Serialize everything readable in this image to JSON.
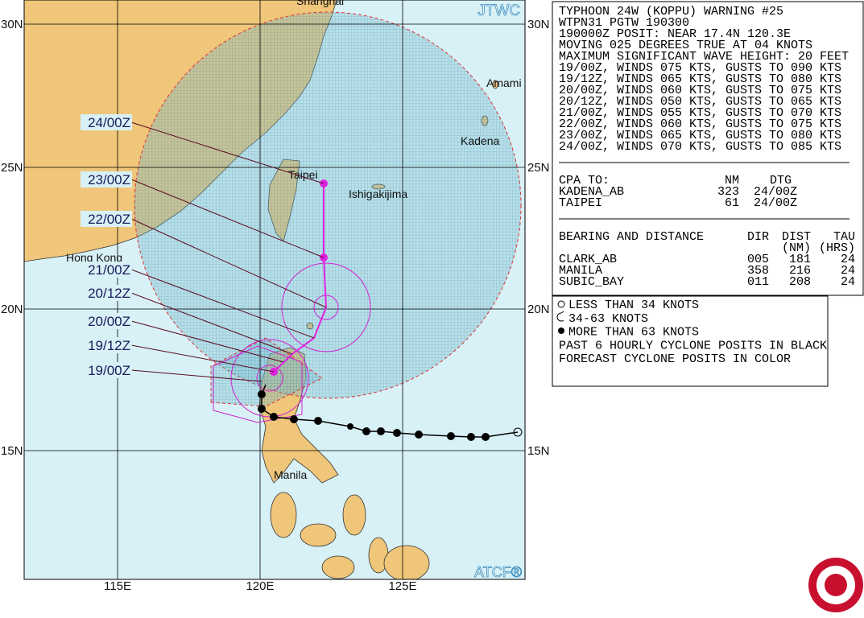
{
  "map": {
    "agency": "JTWC",
    "software": "ATCF®",
    "lat_labels": [
      "30N",
      "25N",
      "20N",
      "15N"
    ],
    "lon_labels": [
      "115E",
      "120E",
      "125E"
    ],
    "places": [
      "Shanghai",
      "Amami",
      "Kadena",
      "Taipei",
      "Ishigakijima",
      "Hong Kong",
      "Manila"
    ],
    "track_labels": [
      "24/00Z",
      "23/00Z",
      "22/00Z",
      "21/00Z",
      "20/12Z",
      "20/00Z",
      "19/12Z",
      "19/00Z"
    ]
  },
  "warning": {
    "header": [
      "TYPHOON 24W (KOPPU) WARNING #25",
      "WTPN31 PGTW 190300",
      "190000Z POSIT: NEAR 17.4N 120.3E",
      "MOVING 025 DEGREES TRUE AT 04 KNOTS",
      "MAXIMUM SIGNIFICANT WAVE HEIGHT: 20 FEET"
    ],
    "forecast": [
      "19/00Z, WINDS 075 KTS, GUSTS TO 090 KTS",
      "19/12Z, WINDS 065 KTS, GUSTS TO 080 KTS",
      "20/00Z, WINDS 060 KTS, GUSTS TO 075 KTS",
      "20/12Z, WINDS 050 KTS, GUSTS TO 065 KTS",
      "21/00Z, WINDS 055 KTS, GUSTS TO 070 KTS",
      "22/00Z, WINDS 060 KTS, GUSTS TO 075 KTS",
      "23/00Z, WINDS 065 KTS, GUSTS TO 080 KTS",
      "24/00Z, WINDS 070 KTS, GUSTS TO 085 KTS"
    ],
    "cpa": {
      "headers": [
        "CPA TO:",
        "NM",
        "DTG"
      ],
      "rows": [
        [
          "KADENA_AB",
          "323",
          "24/00Z"
        ],
        [
          "TAIPEI",
          "61",
          "24/00Z"
        ]
      ]
    },
    "bearing": {
      "headers": [
        "BEARING AND DISTANCE",
        "DIR",
        "DIST",
        "TAU"
      ],
      "units": [
        "(NM)",
        "(HRS)"
      ],
      "rows": [
        [
          "CLARK_AB",
          "005",
          "181",
          "24"
        ],
        [
          "MANILA",
          "358",
          "216",
          "24"
        ],
        [
          "SUBIC_BAY",
          "011",
          "208",
          "24"
        ]
      ]
    }
  },
  "legend": [
    "LESS THAN 34 KNOTS",
    "34-63 KNOTS",
    "MORE THAN 63 KNOTS",
    "PAST 6 HOURLY CYCLONE POSITS IN BLACK",
    "FORECAST CYCLONE POSITS IN COLOR"
  ]
}
